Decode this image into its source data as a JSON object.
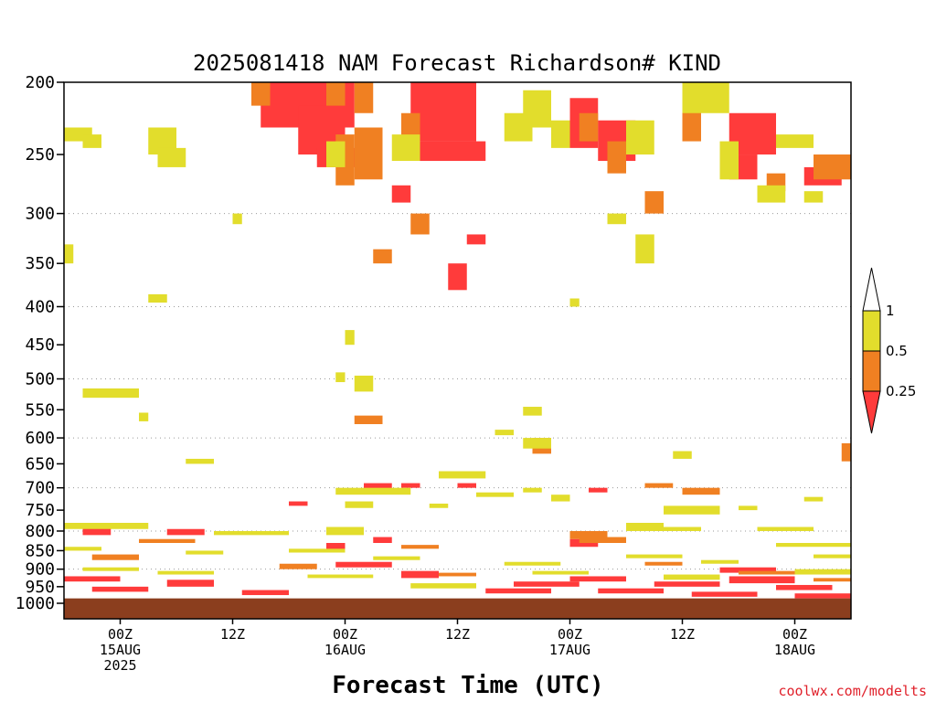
{
  "chart_data": {
    "type": "heatmap",
    "title": "2025081418 NAM Forecast Richardson# KIND",
    "xlabel": "Forecast Time (UTC)",
    "credit": "coolwx.com/modelts",
    "y_axis": {
      "scale": "log-pressure",
      "unit": "hPa",
      "range": [
        1000,
        200
      ],
      "ticks": [
        200,
        250,
        300,
        350,
        400,
        450,
        500,
        550,
        600,
        650,
        700,
        750,
        800,
        850,
        900,
        950,
        1000
      ],
      "dotted_gridlines": [
        300,
        400,
        500,
        600,
        700,
        800,
        900,
        1000
      ]
    },
    "x_axis": {
      "range_hours": [
        0,
        84
      ],
      "ticks": [
        {
          "hour": 6,
          "lines": [
            "00Z",
            "15AUG",
            "2025"
          ]
        },
        {
          "hour": 18,
          "lines": [
            "12Z"
          ]
        },
        {
          "hour": 30,
          "lines": [
            "00Z",
            "16AUG"
          ]
        },
        {
          "hour": 42,
          "lines": [
            "12Z"
          ]
        },
        {
          "hour": 54,
          "lines": [
            "00Z",
            "17AUG"
          ]
        },
        {
          "hour": 66,
          "lines": [
            "12Z"
          ]
        },
        {
          "hour": 78,
          "lines": [
            "00Z",
            "18AUG"
          ]
        }
      ]
    },
    "colorbar": {
      "bins": [
        {
          "label": "< 0.25",
          "color": "#ff3b3b"
        },
        {
          "label": "0.25 - 0.5",
          "color": "#f08022"
        },
        {
          "label": "0.5 - 1",
          "color": "#e2dd2c"
        },
        {
          "label": "> 1",
          "color": "#ffffff"
        }
      ],
      "tick_labels": [
        "1",
        "0.5",
        "0.25"
      ]
    },
    "ground": {
      "color": "#8b3e1e",
      "below_hpa": 985
    },
    "series": [
      {
        "name": "< 0.25",
        "color": "#ff3b3b",
        "blocks": [
          [
            21,
            31,
            200,
            230
          ],
          [
            25,
            30,
            215,
            250
          ],
          [
            37,
            44,
            200,
            240
          ],
          [
            38,
            45,
            240,
            255
          ],
          [
            27,
            32,
            245,
            260
          ],
          [
            35,
            37,
            275,
            290
          ],
          [
            54,
            57,
            210,
            245
          ],
          [
            57,
            61,
            225,
            255
          ],
          [
            71,
            76,
            220,
            250
          ],
          [
            71,
            74,
            250,
            270
          ],
          [
            79,
            83,
            260,
            275
          ],
          [
            41,
            43,
            350,
            380
          ],
          [
            43,
            45,
            320,
            330
          ],
          [
            32,
            35,
            690,
            705
          ],
          [
            36,
            38,
            690,
            700
          ],
          [
            42,
            44,
            690,
            700
          ],
          [
            56,
            58,
            700,
            710
          ],
          [
            24,
            26,
            730,
            740
          ],
          [
            33,
            35,
            815,
            830
          ],
          [
            54,
            57,
            820,
            840
          ],
          [
            2,
            5,
            790,
            810
          ],
          [
            11,
            15,
            795,
            810
          ],
          [
            28,
            30,
            830,
            850
          ],
          [
            0,
            6,
            920,
            935
          ],
          [
            3,
            9,
            950,
            965
          ],
          [
            11,
            16,
            930,
            950
          ],
          [
            19,
            24,
            960,
            975
          ],
          [
            29,
            35,
            880,
            895
          ],
          [
            36,
            40,
            905,
            925
          ],
          [
            45,
            52,
            955,
            970
          ],
          [
            48,
            55,
            935,
            950
          ],
          [
            54,
            60,
            920,
            935
          ],
          [
            57,
            64,
            955,
            970
          ],
          [
            63,
            70,
            935,
            950
          ],
          [
            67,
            74,
            965,
            980
          ],
          [
            71,
            78,
            920,
            940
          ],
          [
            76,
            82,
            945,
            960
          ],
          [
            78,
            84,
            970,
            985
          ],
          [
            70,
            76,
            895,
            910
          ]
        ]
      },
      {
        "name": "0.25 - 0.5",
        "color": "#f08022",
        "blocks": [
          [
            20,
            22,
            200,
            215
          ],
          [
            28,
            30,
            200,
            215
          ],
          [
            31,
            33,
            200,
            220
          ],
          [
            29,
            31,
            235,
            275
          ],
          [
            31,
            34,
            230,
            270
          ],
          [
            36,
            38,
            220,
            240
          ],
          [
            37,
            39,
            300,
            320
          ],
          [
            33,
            35,
            335,
            350
          ],
          [
            55,
            57,
            220,
            240
          ],
          [
            58,
            60,
            240,
            265
          ],
          [
            62,
            64,
            280,
            300
          ],
          [
            66,
            68,
            200,
            240
          ],
          [
            80,
            84,
            250,
            270
          ],
          [
            75,
            77,
            265,
            280
          ],
          [
            2,
            6,
            515,
            525
          ],
          [
            31,
            34,
            560,
            575
          ],
          [
            50,
            52,
            600,
            630
          ],
          [
            54,
            58,
            800,
            820
          ],
          [
            55,
            60,
            815,
            830
          ],
          [
            62,
            65,
            690,
            700
          ],
          [
            66,
            70,
            700,
            715
          ],
          [
            8,
            14,
            820,
            830
          ],
          [
            36,
            40,
            835,
            845
          ],
          [
            83,
            84,
            610,
            645
          ],
          [
            3,
            8,
            860,
            875
          ],
          [
            23,
            27,
            885,
            900
          ],
          [
            40,
            44,
            910,
            920
          ],
          [
            62,
            66,
            880,
            890
          ],
          [
            72,
            78,
            905,
            915
          ],
          [
            80,
            84,
            925,
            935
          ]
        ]
      },
      {
        "name": "0.5 - 1",
        "color": "#e2dd2c",
        "blocks": [
          [
            0,
            3,
            230,
            240
          ],
          [
            2,
            4,
            235,
            245
          ],
          [
            9,
            12,
            230,
            250
          ],
          [
            10,
            13,
            245,
            260
          ],
          [
            28,
            30,
            240,
            260
          ],
          [
            35,
            38,
            235,
            255
          ],
          [
            47,
            50,
            220,
            240
          ],
          [
            49,
            52,
            205,
            230
          ],
          [
            52,
            54,
            225,
            245
          ],
          [
            60,
            63,
            225,
            250
          ],
          [
            70,
            72,
            240,
            270
          ],
          [
            76,
            80,
            235,
            245
          ],
          [
            66,
            71,
            200,
            220
          ],
          [
            74,
            77,
            275,
            290
          ],
          [
            79,
            81,
            280,
            290
          ],
          [
            58,
            60,
            300,
            310
          ],
          [
            61,
            63,
            320,
            350
          ],
          [
            18,
            19,
            300,
            310
          ],
          [
            0,
            1,
            330,
            350
          ],
          [
            9,
            11,
            385,
            395
          ],
          [
            54,
            55,
            390,
            400
          ],
          [
            30,
            31,
            430,
            450
          ],
          [
            29,
            30,
            490,
            505
          ],
          [
            31,
            33,
            495,
            520
          ],
          [
            2,
            8,
            515,
            530
          ],
          [
            8,
            9,
            555,
            570
          ],
          [
            49,
            51,
            545,
            560
          ],
          [
            46,
            48,
            585,
            595
          ],
          [
            49,
            52,
            600,
            620
          ],
          [
            13,
            16,
            640,
            650
          ],
          [
            40,
            45,
            665,
            680
          ],
          [
            65,
            67,
            625,
            640
          ],
          [
            29,
            37,
            700,
            715
          ],
          [
            30,
            33,
            730,
            745
          ],
          [
            39,
            41,
            735,
            745
          ],
          [
            44,
            48,
            710,
            720
          ],
          [
            49,
            51,
            700,
            710
          ],
          [
            52,
            54,
            715,
            730
          ],
          [
            64,
            70,
            740,
            760
          ],
          [
            72,
            74,
            740,
            750
          ],
          [
            79,
            81,
            720,
            730
          ],
          [
            60,
            64,
            780,
            800
          ],
          [
            0,
            9,
            780,
            795
          ],
          [
            16,
            24,
            800,
            810
          ],
          [
            28,
            32,
            790,
            810
          ],
          [
            63,
            68,
            790,
            800
          ],
          [
            74,
            80,
            790,
            800
          ],
          [
            76,
            84,
            830,
            840
          ],
          [
            0,
            4,
            840,
            850
          ],
          [
            13,
            17,
            850,
            860
          ],
          [
            24,
            30,
            845,
            855
          ],
          [
            33,
            38,
            865,
            875
          ],
          [
            47,
            53,
            880,
            890
          ],
          [
            60,
            66,
            860,
            870
          ],
          [
            68,
            72,
            875,
            885
          ],
          [
            80,
            84,
            860,
            870
          ],
          [
            2,
            8,
            895,
            905
          ],
          [
            10,
            16,
            905,
            915
          ],
          [
            26,
            33,
            915,
            925
          ],
          [
            37,
            44,
            940,
            955
          ],
          [
            50,
            56,
            905,
            915
          ],
          [
            64,
            70,
            915,
            930
          ],
          [
            78,
            84,
            900,
            915
          ]
        ]
      }
    ]
  }
}
